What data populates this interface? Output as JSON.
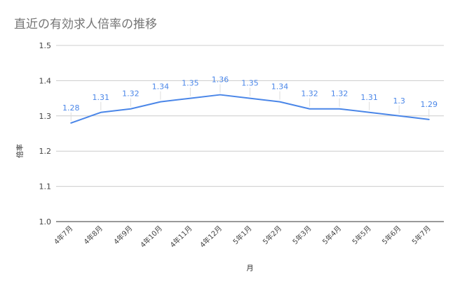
{
  "chart_data": {
    "type": "line",
    "title": "直近の有効求人倍率の推移",
    "xlabel": "月",
    "ylabel": "倍率",
    "categories": [
      "4年7月",
      "4年8月",
      "4年9月",
      "4年10月",
      "4年11月",
      "4年12月",
      "5年1月",
      "5年2月",
      "5年3月",
      "5年4月",
      "5年5月",
      "5年6月",
      "5年7月"
    ],
    "series": [
      {
        "values": [
          1.28,
          1.31,
          1.32,
          1.34,
          1.35,
          1.36,
          1.35,
          1.34,
          1.32,
          1.32,
          1.31,
          1.3,
          1.29
        ],
        "data_labels": [
          "1.28",
          "1.31",
          "1.32",
          "1.34",
          "1.35",
          "1.36",
          "1.35",
          "1.34",
          "1.32",
          "1.32",
          "1.31",
          "1.3",
          "1.29"
        ],
        "color": "#4a86e8"
      }
    ],
    "ylim": [
      1.0,
      1.5
    ],
    "yticks": [
      "1.0",
      "1.1",
      "1.2",
      "1.3",
      "1.4",
      "1.5"
    ],
    "grid": true,
    "legend": "none"
  }
}
